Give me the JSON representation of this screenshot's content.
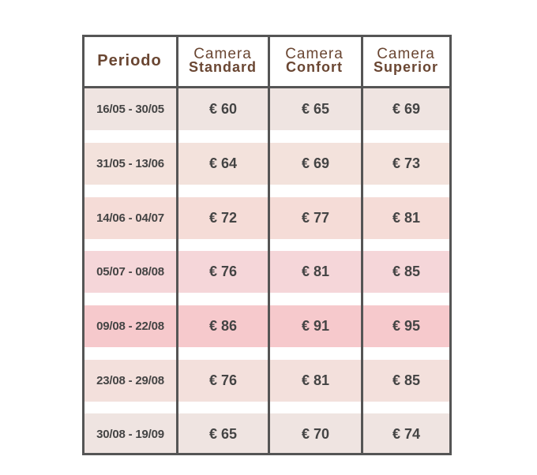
{
  "table": {
    "headers": {
      "period": "Periodo",
      "standard": {
        "line1": "Camera",
        "line2": "Standard"
      },
      "confort": {
        "line1": "Camera",
        "line2": "Confort"
      },
      "superior": {
        "line1": "Camera",
        "line2": "Superior"
      }
    },
    "rows": [
      {
        "period": "16/05 - 30/05",
        "standard": "€ 60",
        "confort": "€ 65",
        "superior": "€ 69",
        "color": "#efe4e1"
      },
      {
        "period": "31/05 - 13/06",
        "standard": "€ 64",
        "confort": "€ 69",
        "superior": "€ 73",
        "color": "#f3e2dc"
      },
      {
        "period": "14/06 - 04/07",
        "standard": "€ 72",
        "confort": "€ 77",
        "superior": "€ 81",
        "color": "#f5dcd7"
      },
      {
        "period": "05/07 - 08/08",
        "standard": "€ 76",
        "confort": "€ 81",
        "superior": "€ 85",
        "color": "#f5d6d9"
      },
      {
        "period": "09/08 - 22/08",
        "standard": "€ 86",
        "confort": "€ 91",
        "superior": "€ 95",
        "color": "#f6c9cc"
      },
      {
        "period": "23/08 - 29/08",
        "standard": "€ 76",
        "confort": "€ 81",
        "superior": "€ 85",
        "color": "#f3e0dc"
      },
      {
        "period": "30/08 - 19/09",
        "standard": "€ 65",
        "confort": "€ 70",
        "superior": "€ 74",
        "color": "#efe4e1"
      }
    ]
  },
  "colors": {
    "header_text": "#6a4632",
    "body_text": "#444444",
    "border": "#555555"
  }
}
